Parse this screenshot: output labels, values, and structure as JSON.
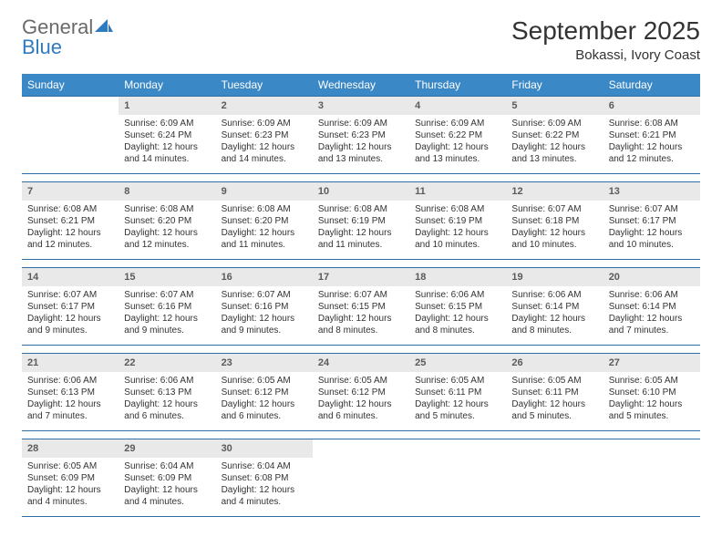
{
  "logo": {
    "text1": "General",
    "text2": "Blue"
  },
  "title": "September 2025",
  "subtitle": "Bokassi, Ivory Coast",
  "colors": {
    "header_bg": "#3a88c6",
    "header_text": "#ffffff",
    "daynum_bg": "#e9e9e9",
    "daynum_text": "#5b5b5b",
    "border": "#2f6fa8",
    "body_text": "#333333",
    "logo_gray": "#6a6a6a",
    "logo_blue": "#2f7bbf"
  },
  "day_headers": [
    "Sunday",
    "Monday",
    "Tuesday",
    "Wednesday",
    "Thursday",
    "Friday",
    "Saturday"
  ],
  "weeks": [
    [
      {
        "day": "",
        "sunrise": "",
        "sunset": "",
        "daylight": ""
      },
      {
        "day": "1",
        "sunrise": "Sunrise: 6:09 AM",
        "sunset": "Sunset: 6:24 PM",
        "daylight": "Daylight: 12 hours and 14 minutes."
      },
      {
        "day": "2",
        "sunrise": "Sunrise: 6:09 AM",
        "sunset": "Sunset: 6:23 PM",
        "daylight": "Daylight: 12 hours and 14 minutes."
      },
      {
        "day": "3",
        "sunrise": "Sunrise: 6:09 AM",
        "sunset": "Sunset: 6:23 PM",
        "daylight": "Daylight: 12 hours and 13 minutes."
      },
      {
        "day": "4",
        "sunrise": "Sunrise: 6:09 AM",
        "sunset": "Sunset: 6:22 PM",
        "daylight": "Daylight: 12 hours and 13 minutes."
      },
      {
        "day": "5",
        "sunrise": "Sunrise: 6:09 AM",
        "sunset": "Sunset: 6:22 PM",
        "daylight": "Daylight: 12 hours and 13 minutes."
      },
      {
        "day": "6",
        "sunrise": "Sunrise: 6:08 AM",
        "sunset": "Sunset: 6:21 PM",
        "daylight": "Daylight: 12 hours and 12 minutes."
      }
    ],
    [
      {
        "day": "7",
        "sunrise": "Sunrise: 6:08 AM",
        "sunset": "Sunset: 6:21 PM",
        "daylight": "Daylight: 12 hours and 12 minutes."
      },
      {
        "day": "8",
        "sunrise": "Sunrise: 6:08 AM",
        "sunset": "Sunset: 6:20 PM",
        "daylight": "Daylight: 12 hours and 12 minutes."
      },
      {
        "day": "9",
        "sunrise": "Sunrise: 6:08 AM",
        "sunset": "Sunset: 6:20 PM",
        "daylight": "Daylight: 12 hours and 11 minutes."
      },
      {
        "day": "10",
        "sunrise": "Sunrise: 6:08 AM",
        "sunset": "Sunset: 6:19 PM",
        "daylight": "Daylight: 12 hours and 11 minutes."
      },
      {
        "day": "11",
        "sunrise": "Sunrise: 6:08 AM",
        "sunset": "Sunset: 6:19 PM",
        "daylight": "Daylight: 12 hours and 10 minutes."
      },
      {
        "day": "12",
        "sunrise": "Sunrise: 6:07 AM",
        "sunset": "Sunset: 6:18 PM",
        "daylight": "Daylight: 12 hours and 10 minutes."
      },
      {
        "day": "13",
        "sunrise": "Sunrise: 6:07 AM",
        "sunset": "Sunset: 6:17 PM",
        "daylight": "Daylight: 12 hours and 10 minutes."
      }
    ],
    [
      {
        "day": "14",
        "sunrise": "Sunrise: 6:07 AM",
        "sunset": "Sunset: 6:17 PM",
        "daylight": "Daylight: 12 hours and 9 minutes."
      },
      {
        "day": "15",
        "sunrise": "Sunrise: 6:07 AM",
        "sunset": "Sunset: 6:16 PM",
        "daylight": "Daylight: 12 hours and 9 minutes."
      },
      {
        "day": "16",
        "sunrise": "Sunrise: 6:07 AM",
        "sunset": "Sunset: 6:16 PM",
        "daylight": "Daylight: 12 hours and 9 minutes."
      },
      {
        "day": "17",
        "sunrise": "Sunrise: 6:07 AM",
        "sunset": "Sunset: 6:15 PM",
        "daylight": "Daylight: 12 hours and 8 minutes."
      },
      {
        "day": "18",
        "sunrise": "Sunrise: 6:06 AM",
        "sunset": "Sunset: 6:15 PM",
        "daylight": "Daylight: 12 hours and 8 minutes."
      },
      {
        "day": "19",
        "sunrise": "Sunrise: 6:06 AM",
        "sunset": "Sunset: 6:14 PM",
        "daylight": "Daylight: 12 hours and 8 minutes."
      },
      {
        "day": "20",
        "sunrise": "Sunrise: 6:06 AM",
        "sunset": "Sunset: 6:14 PM",
        "daylight": "Daylight: 12 hours and 7 minutes."
      }
    ],
    [
      {
        "day": "21",
        "sunrise": "Sunrise: 6:06 AM",
        "sunset": "Sunset: 6:13 PM",
        "daylight": "Daylight: 12 hours and 7 minutes."
      },
      {
        "day": "22",
        "sunrise": "Sunrise: 6:06 AM",
        "sunset": "Sunset: 6:13 PM",
        "daylight": "Daylight: 12 hours and 6 minutes."
      },
      {
        "day": "23",
        "sunrise": "Sunrise: 6:05 AM",
        "sunset": "Sunset: 6:12 PM",
        "daylight": "Daylight: 12 hours and 6 minutes."
      },
      {
        "day": "24",
        "sunrise": "Sunrise: 6:05 AM",
        "sunset": "Sunset: 6:12 PM",
        "daylight": "Daylight: 12 hours and 6 minutes."
      },
      {
        "day": "25",
        "sunrise": "Sunrise: 6:05 AM",
        "sunset": "Sunset: 6:11 PM",
        "daylight": "Daylight: 12 hours and 5 minutes."
      },
      {
        "day": "26",
        "sunrise": "Sunrise: 6:05 AM",
        "sunset": "Sunset: 6:11 PM",
        "daylight": "Daylight: 12 hours and 5 minutes."
      },
      {
        "day": "27",
        "sunrise": "Sunrise: 6:05 AM",
        "sunset": "Sunset: 6:10 PM",
        "daylight": "Daylight: 12 hours and 5 minutes."
      }
    ],
    [
      {
        "day": "28",
        "sunrise": "Sunrise: 6:05 AM",
        "sunset": "Sunset: 6:09 PM",
        "daylight": "Daylight: 12 hours and 4 minutes."
      },
      {
        "day": "29",
        "sunrise": "Sunrise: 6:04 AM",
        "sunset": "Sunset: 6:09 PM",
        "daylight": "Daylight: 12 hours and 4 minutes."
      },
      {
        "day": "30",
        "sunrise": "Sunrise: 6:04 AM",
        "sunset": "Sunset: 6:08 PM",
        "daylight": "Daylight: 12 hours and 4 minutes."
      },
      {
        "day": "",
        "sunrise": "",
        "sunset": "",
        "daylight": ""
      },
      {
        "day": "",
        "sunrise": "",
        "sunset": "",
        "daylight": ""
      },
      {
        "day": "",
        "sunrise": "",
        "sunset": "",
        "daylight": ""
      },
      {
        "day": "",
        "sunrise": "",
        "sunset": "",
        "daylight": ""
      }
    ]
  ]
}
